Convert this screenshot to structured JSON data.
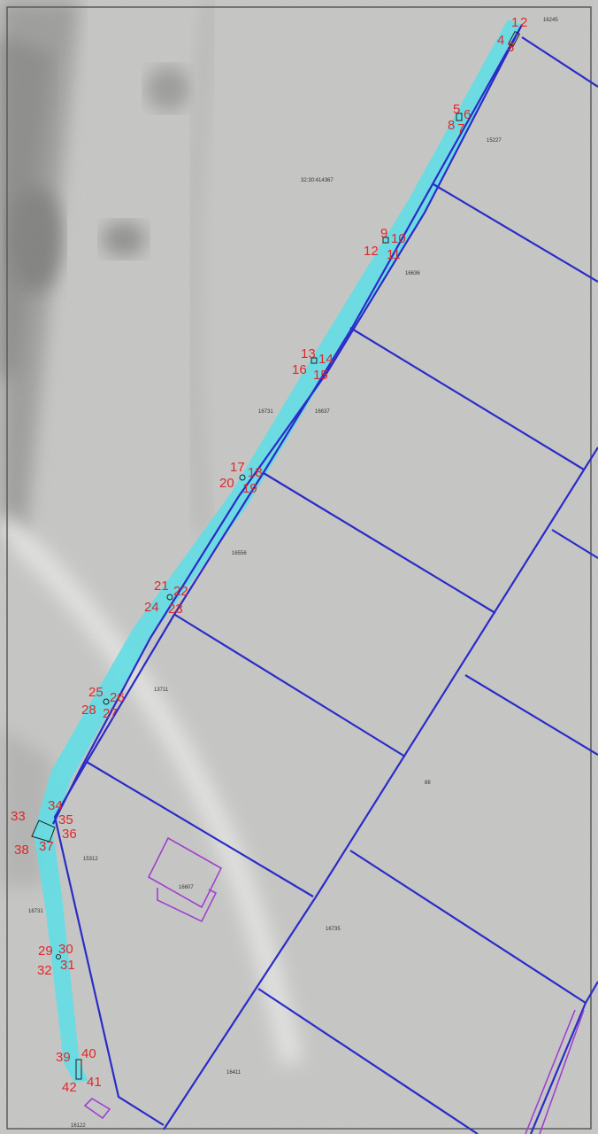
{
  "colors": {
    "background": "#c9cac8",
    "parcel_lines": "#2b2bc8",
    "strip": "#66e0e6",
    "point_labels": "#e0272a",
    "buildings": "#a040d0"
  },
  "point_labels": [
    "1",
    "2",
    "3",
    "4",
    "5",
    "6",
    "7",
    "8",
    "9",
    "10",
    "11",
    "12",
    "13",
    "14",
    "15",
    "16",
    "17",
    "18",
    "19",
    "20",
    "21",
    "22",
    "23",
    "24",
    "25",
    "26",
    "27",
    "28",
    "29",
    "30",
    "31",
    "32",
    "33",
    "34",
    "35",
    "36",
    "37",
    "38",
    "39",
    "40",
    "41",
    "42"
  ],
  "parcel_labels": [
    "16245",
    "32:30:414367",
    "15227",
    "16636",
    "16731",
    "16637",
    "16556",
    "13711",
    "88",
    "15312",
    "16731",
    "16607",
    "16735",
    "16411",
    "16122"
  ]
}
